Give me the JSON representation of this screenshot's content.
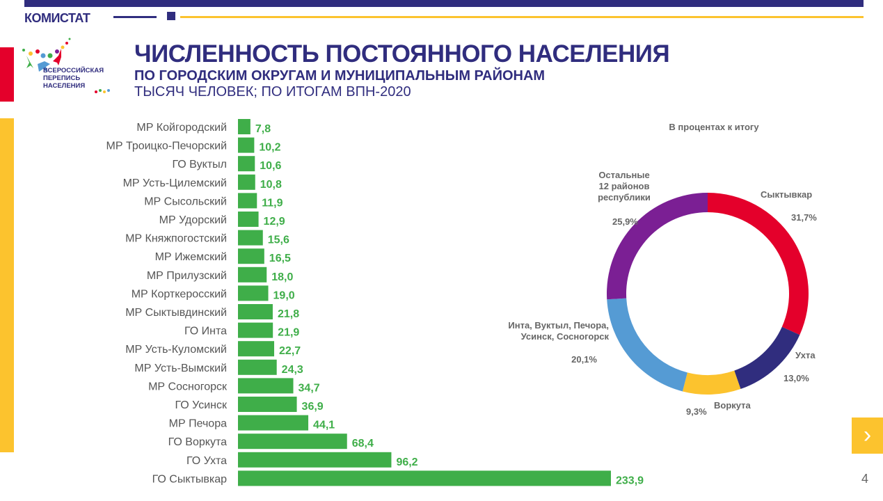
{
  "header": {
    "brand": "КОМИСТАТ",
    "logo_text": [
      "ВСЕРОССИЙСКАЯ",
      "ПЕРЕПИСЬ",
      "НАСЕЛЕНИЯ"
    ],
    "title": "ЧИСЛЕННОСТЬ ПОСТОЯННОГО НАСЕЛЕНИЯ",
    "subtitle": "ПО ГОРОДСКИМ ОКРУГАМ И МУНИЦИПАЛЬНЫМ РАЙОНАМ",
    "units": "ТЫСЯЧ ЧЕЛОВЕК; ПО ИТОГАМ ВПН-2020"
  },
  "footer": {
    "page_number": "4",
    "next_icon": "chevron-right-icon"
  },
  "colors": {
    "navy": "#302d7e",
    "yellow": "#fcc32e",
    "red": "#e4002b",
    "green": "#3fae49",
    "blue": "#559bd4",
    "purple": "#7b1f94"
  },
  "chart_data": [
    {
      "type": "bar",
      "orientation": "horizontal",
      "categories": [
        "МР Койгородский",
        "МР Троицко-Печорский",
        "ГО Вуктыл",
        "МР Усть-Цилемский",
        "МР Сысольский",
        "МР Удорский",
        "МР Княжпогостский",
        "МР Ижемский",
        "МР Прилузский",
        "МР Корткеросский",
        "МР Сыктывдинский",
        "ГО Инта",
        "МР Усть-Куломский",
        "МР Усть-Вымский",
        "МР Сосногорск",
        "ГО Усинск",
        "МР Печора",
        "ГО Воркута",
        "ГО Ухта",
        "ГО Сыктывкар"
      ],
      "values": [
        7.8,
        10.2,
        10.6,
        10.8,
        11.9,
        12.9,
        15.6,
        16.5,
        18.0,
        19.0,
        21.8,
        21.9,
        22.7,
        24.3,
        34.7,
        36.9,
        44.1,
        68.4,
        96.2,
        233.9
      ],
      "labels": [
        "7,8",
        "10,2",
        "10,6",
        "10,8",
        "11,9",
        "12,9",
        "15,6",
        "16,5",
        "18,0",
        "19,0",
        "21,8",
        "21,9",
        "22,7",
        "24,3",
        "34,7",
        "36,9",
        "44,1",
        "68,4",
        "96,2",
        "233,9"
      ],
      "color": "#3fae49"
    },
    {
      "type": "pie",
      "donut": true,
      "title": "В процентах к итогу",
      "slices": [
        {
          "name": [
            "Сыктывкар"
          ],
          "value": 31.7,
          "label": "31,7%",
          "color": "#e4002b"
        },
        {
          "name": [
            "Ухта"
          ],
          "value": 13.0,
          "label": "13,0%",
          "color": "#302d7e"
        },
        {
          "name": [
            "Воркута"
          ],
          "value": 9.3,
          "label": "9,3%",
          "color": "#fcc32e"
        },
        {
          "name": [
            "Инта, Вуктыл, Печора,",
            "Усинск, Сосногорск"
          ],
          "value": 20.1,
          "label": "20,1%",
          "color": "#559bd4"
        },
        {
          "name": [
            "Остальные",
            "12 районов",
            "республики"
          ],
          "value": 25.9,
          "label": "25,9%",
          "color": "#7b1f94"
        }
      ]
    }
  ]
}
